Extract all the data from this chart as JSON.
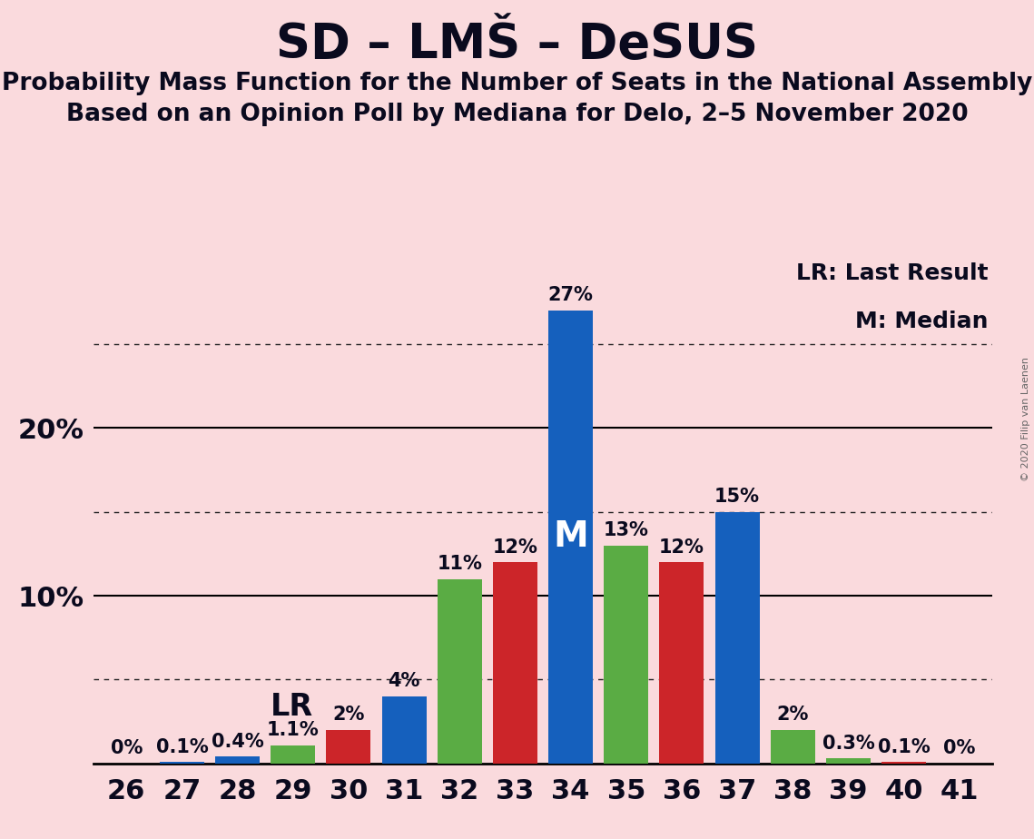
{
  "title": "SD – LMŠ – DeSUS",
  "subtitle1": "Probability Mass Function for the Number of Seats in the National Assembly",
  "subtitle2": "Based on an Opinion Poll by Mediana for Delo, 2–5 November 2020",
  "copyright": "© 2020 Filip van Laenen",
  "background_color": "#fadadd",
  "bars": [
    {
      "x": 26,
      "value": 0.0,
      "color": "#1560bd",
      "label": "0%"
    },
    {
      "x": 27,
      "value": 0.1,
      "color": "#1560bd",
      "label": "0.1%"
    },
    {
      "x": 28,
      "value": 0.4,
      "color": "#1560bd",
      "label": "0.4%"
    },
    {
      "x": 29,
      "value": 1.1,
      "color": "#5aac44",
      "label": "1.1%"
    },
    {
      "x": 30,
      "value": 2.0,
      "color": "#cc2529",
      "label": "2%"
    },
    {
      "x": 31,
      "value": 4.0,
      "color": "#1560bd",
      "label": "4%"
    },
    {
      "x": 32,
      "value": 11.0,
      "color": "#5aac44",
      "label": "11%"
    },
    {
      "x": 33,
      "value": 12.0,
      "color": "#cc2529",
      "label": "12%"
    },
    {
      "x": 34,
      "value": 27.0,
      "color": "#1560bd",
      "label": "27%"
    },
    {
      "x": 35,
      "value": 13.0,
      "color": "#5aac44",
      "label": "13%"
    },
    {
      "x": 36,
      "value": 12.0,
      "color": "#cc2529",
      "label": "12%"
    },
    {
      "x": 37,
      "value": 15.0,
      "color": "#1560bd",
      "label": "15%"
    },
    {
      "x": 38,
      "value": 2.0,
      "color": "#5aac44",
      "label": "2%"
    },
    {
      "x": 39,
      "value": 0.3,
      "color": "#5aac44",
      "label": "0.3%"
    },
    {
      "x": 40,
      "value": 0.1,
      "color": "#cc2529",
      "label": "0.1%"
    },
    {
      "x": 41,
      "value": 0.0,
      "color": "#1560bd",
      "label": "0%"
    }
  ],
  "legend_text": [
    "LR: Last Result",
    "M: Median"
  ],
  "ylim": [
    0,
    30
  ],
  "major_yticks": [
    10,
    20
  ],
  "dotted_yticks": [
    5,
    15,
    25
  ],
  "xlim": [
    25.4,
    41.6
  ],
  "xticks": [
    26,
    27,
    28,
    29,
    30,
    31,
    32,
    33,
    34,
    35,
    36,
    37,
    38,
    39,
    40,
    41
  ],
  "bar_width": 0.8,
  "title_fontsize": 38,
  "subtitle_fontsize": 19,
  "tick_fontsize": 22,
  "bar_label_fontsize": 15,
  "legend_fontsize": 18,
  "lr_fontsize": 24,
  "m_fontsize": 28
}
